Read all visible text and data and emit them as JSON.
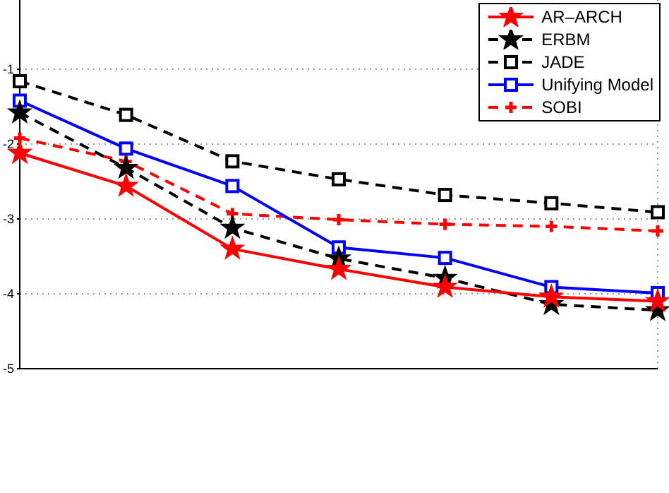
{
  "chart_data": {
    "type": "line",
    "categories": [
      null,
      null,
      null,
      null,
      null,
      null,
      null
    ],
    "series": [
      {
        "name": "AR–ARCH",
        "color": "#ff0000",
        "marker": "star",
        "line_style": "solid",
        "values": [
          -2.12,
          -2.56,
          -3.4,
          -3.67,
          -3.91,
          -4.04,
          -4.1
        ]
      },
      {
        "name": "ERBM",
        "color": "#000000",
        "marker": "star",
        "line_style": "dashed",
        "values": [
          -1.58,
          -2.32,
          -3.12,
          -3.53,
          -3.79,
          -4.14,
          -4.22
        ]
      },
      {
        "name": "JADE",
        "color": "#000000",
        "marker": "square",
        "line_style": "dashed",
        "values": [
          -1.16,
          -1.61,
          -2.23,
          -2.47,
          -2.68,
          -2.79,
          -2.91
        ]
      },
      {
        "name": "Unifying Model",
        "color": "#0000ff",
        "marker": "square",
        "line_style": "solid",
        "values": [
          -1.42,
          -2.06,
          -2.56,
          -3.38,
          -3.52,
          -3.91,
          -3.99
        ]
      },
      {
        "name": "SOBI",
        "color": "#ff0000",
        "marker": "cross",
        "line_style": "dashed",
        "values": [
          -1.92,
          -2.23,
          -2.93,
          -3.01,
          -3.07,
          -3.1,
          -3.16
        ]
      }
    ],
    "ylim": [
      -5,
      0
    ],
    "yticks": [
      -5,
      -4,
      -3,
      -2,
      -1
    ],
    "tick_labels": "y",
    "grid": true,
    "legend": "top right"
  }
}
